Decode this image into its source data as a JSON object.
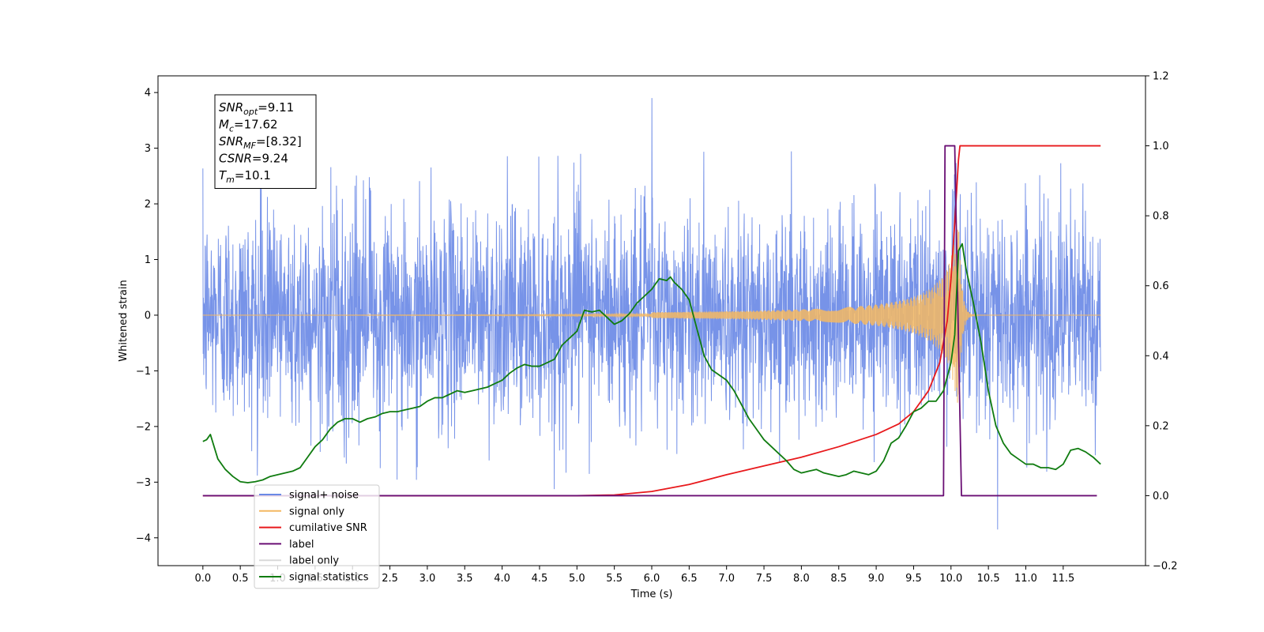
{
  "chart_data": {
    "type": "line",
    "title": "",
    "xlabel": "Time (s)",
    "ylabel": "Whitened strain",
    "xlim": [
      -0.6,
      12.6
    ],
    "ylim_left": [
      -4.5,
      4.3
    ],
    "ylim_right": [
      -0.2,
      1.2
    ],
    "x_ticks": [
      "0.0",
      "0.5",
      "1.0",
      "1.5",
      "2.0",
      "2.5",
      "3.0",
      "3.5",
      "4.0",
      "4.5",
      "5.0",
      "5.5",
      "6.0",
      "6.5",
      "7.0",
      "7.5",
      "8.0",
      "8.5",
      "9.0",
      "9.5",
      "10.0",
      "10.5",
      "11.0",
      "11.5"
    ],
    "y_left_ticks": [
      "4",
      "3",
      "2",
      "1",
      "0",
      "−1",
      "−2",
      "−3",
      "−4"
    ],
    "y_right_ticks": [
      "1.2",
      "1.0",
      "0.8",
      "0.6",
      "0.4",
      "0.2",
      "0.0",
      "−0.2"
    ],
    "grid": false,
    "legend_position": "bottom-left",
    "annotation": {
      "lines": [
        {
          "sym": "SNR",
          "sub": "opt",
          "val": "=9.11"
        },
        {
          "sym": "M",
          "sub": "c",
          "val": "=17.62"
        },
        {
          "sym": "SNR",
          "sub": "MF",
          "val": "=[8.32]"
        },
        {
          "sym": "CSNR",
          "sub": "",
          "val": "=9.24"
        },
        {
          "sym": "T",
          "sub": "m",
          "val": "=10.1"
        }
      ]
    },
    "series": [
      {
        "name": "signal+ noise",
        "axis": "left",
        "color": "#6b8ae6",
        "kind": "noise",
        "x_range": [
          0.0,
          12.0
        ],
        "std": 1.0,
        "peak_max": 3.9,
        "peak_min": -3.85
      },
      {
        "name": "signal only",
        "axis": "left",
        "color": "#f4b862",
        "kind": "chirp",
        "x_range": [
          0.0,
          12.0
        ],
        "merger_time": 10.1,
        "amplitude_at_merger": 1.8
      },
      {
        "name": "cumilative SNR",
        "axis": "right",
        "color": "#e8191c",
        "points": [
          [
            0.0,
            0.0
          ],
          [
            5.0,
            0.0
          ],
          [
            5.5,
            0.002
          ],
          [
            6.0,
            0.012
          ],
          [
            6.5,
            0.032
          ],
          [
            7.0,
            0.06
          ],
          [
            7.5,
            0.085
          ],
          [
            8.0,
            0.11
          ],
          [
            8.5,
            0.14
          ],
          [
            9.0,
            0.175
          ],
          [
            9.3,
            0.205
          ],
          [
            9.5,
            0.24
          ],
          [
            9.7,
            0.3
          ],
          [
            9.85,
            0.38
          ],
          [
            9.95,
            0.5
          ],
          [
            10.0,
            0.62
          ],
          [
            10.05,
            0.78
          ],
          [
            10.1,
            0.96
          ],
          [
            10.12,
            1.0
          ],
          [
            12.0,
            1.0
          ]
        ]
      },
      {
        "name": "label",
        "axis": "right",
        "color": "#6a0f74",
        "points": [
          [
            0.0,
            0.0
          ],
          [
            9.9,
            0.0
          ],
          [
            9.92,
            1.0
          ],
          [
            10.05,
            1.0
          ],
          [
            10.14,
            0.0
          ],
          [
            11.95,
            0.0
          ]
        ]
      },
      {
        "name": "label only",
        "axis": "right",
        "color": "#d9d9d9",
        "points": []
      },
      {
        "name": "signal statistics",
        "axis": "right",
        "color": "#107c10",
        "points": [
          [
            0.0,
            0.155
          ],
          [
            0.05,
            0.16
          ],
          [
            0.1,
            0.175
          ],
          [
            0.15,
            0.14
          ],
          [
            0.2,
            0.105
          ],
          [
            0.3,
            0.075
          ],
          [
            0.4,
            0.055
          ],
          [
            0.5,
            0.04
          ],
          [
            0.6,
            0.037
          ],
          [
            0.7,
            0.04
          ],
          [
            0.8,
            0.045
          ],
          [
            0.9,
            0.055
          ],
          [
            1.0,
            0.06
          ],
          [
            1.1,
            0.065
          ],
          [
            1.2,
            0.07
          ],
          [
            1.3,
            0.08
          ],
          [
            1.4,
            0.11
          ],
          [
            1.5,
            0.14
          ],
          [
            1.6,
            0.16
          ],
          [
            1.7,
            0.19
          ],
          [
            1.8,
            0.21
          ],
          [
            1.9,
            0.22
          ],
          [
            2.0,
            0.22
          ],
          [
            2.1,
            0.21
          ],
          [
            2.2,
            0.22
          ],
          [
            2.3,
            0.225
          ],
          [
            2.4,
            0.235
          ],
          [
            2.5,
            0.24
          ],
          [
            2.6,
            0.24
          ],
          [
            2.7,
            0.245
          ],
          [
            2.8,
            0.25
          ],
          [
            2.9,
            0.255
          ],
          [
            3.0,
            0.27
          ],
          [
            3.1,
            0.28
          ],
          [
            3.2,
            0.28
          ],
          [
            3.3,
            0.29
          ],
          [
            3.4,
            0.3
          ],
          [
            3.5,
            0.295
          ],
          [
            3.6,
            0.3
          ],
          [
            3.7,
            0.305
          ],
          [
            3.8,
            0.31
          ],
          [
            3.9,
            0.32
          ],
          [
            4.0,
            0.33
          ],
          [
            4.1,
            0.35
          ],
          [
            4.2,
            0.365
          ],
          [
            4.3,
            0.375
          ],
          [
            4.4,
            0.37
          ],
          [
            4.5,
            0.37
          ],
          [
            4.6,
            0.38
          ],
          [
            4.7,
            0.39
          ],
          [
            4.8,
            0.43
          ],
          [
            4.9,
            0.45
          ],
          [
            5.0,
            0.47
          ],
          [
            5.05,
            0.5
          ],
          [
            5.1,
            0.53
          ],
          [
            5.2,
            0.525
          ],
          [
            5.3,
            0.53
          ],
          [
            5.4,
            0.51
          ],
          [
            5.5,
            0.49
          ],
          [
            5.6,
            0.5
          ],
          [
            5.7,
            0.52
          ],
          [
            5.8,
            0.55
          ],
          [
            5.9,
            0.57
          ],
          [
            6.0,
            0.59
          ],
          [
            6.1,
            0.62
          ],
          [
            6.2,
            0.615
          ],
          [
            6.25,
            0.625
          ],
          [
            6.3,
            0.61
          ],
          [
            6.4,
            0.59
          ],
          [
            6.5,
            0.56
          ],
          [
            6.6,
            0.48
          ],
          [
            6.7,
            0.4
          ],
          [
            6.8,
            0.36
          ],
          [
            6.9,
            0.345
          ],
          [
            7.0,
            0.33
          ],
          [
            7.1,
            0.3
          ],
          [
            7.2,
            0.26
          ],
          [
            7.3,
            0.22
          ],
          [
            7.4,
            0.19
          ],
          [
            7.5,
            0.16
          ],
          [
            7.6,
            0.14
          ],
          [
            7.7,
            0.12
          ],
          [
            7.8,
            0.1
          ],
          [
            7.9,
            0.075
          ],
          [
            8.0,
            0.065
          ],
          [
            8.1,
            0.07
          ],
          [
            8.2,
            0.075
          ],
          [
            8.3,
            0.065
          ],
          [
            8.4,
            0.06
          ],
          [
            8.5,
            0.055
          ],
          [
            8.6,
            0.06
          ],
          [
            8.7,
            0.07
          ],
          [
            8.8,
            0.065
          ],
          [
            8.9,
            0.06
          ],
          [
            9.0,
            0.07
          ],
          [
            9.1,
            0.1
          ],
          [
            9.2,
            0.15
          ],
          [
            9.3,
            0.165
          ],
          [
            9.4,
            0.2
          ],
          [
            9.5,
            0.24
          ],
          [
            9.6,
            0.25
          ],
          [
            9.7,
            0.27
          ],
          [
            9.8,
            0.27
          ],
          [
            9.9,
            0.3
          ],
          [
            9.95,
            0.34
          ],
          [
            10.0,
            0.38
          ],
          [
            10.05,
            0.46
          ],
          [
            10.1,
            0.7
          ],
          [
            10.15,
            0.72
          ],
          [
            10.2,
            0.65
          ],
          [
            10.3,
            0.55
          ],
          [
            10.4,
            0.44
          ],
          [
            10.5,
            0.3
          ],
          [
            10.6,
            0.2
          ],
          [
            10.7,
            0.15
          ],
          [
            10.8,
            0.12
          ],
          [
            10.9,
            0.105
          ],
          [
            11.0,
            0.09
          ],
          [
            11.1,
            0.09
          ],
          [
            11.2,
            0.08
          ],
          [
            11.3,
            0.08
          ],
          [
            11.4,
            0.075
          ],
          [
            11.5,
            0.09
          ],
          [
            11.6,
            0.13
          ],
          [
            11.7,
            0.135
          ],
          [
            11.8,
            0.125
          ],
          [
            11.9,
            0.11
          ],
          [
            12.0,
            0.09
          ]
        ]
      }
    ]
  }
}
